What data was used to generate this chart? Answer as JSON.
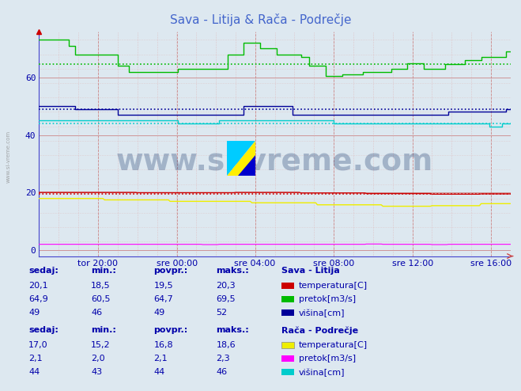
{
  "title": "Sava - Litija & Rača - Podrečje",
  "title_color": "#4466cc",
  "bg_color": "#dde8f0",
  "plot_bg_color": "#dde8f0",
  "x_ticks_labels": [
    "tor 20:00",
    "sre 00:00",
    "sre 04:00",
    "sre 08:00",
    "sre 12:00",
    "sre 16:00"
  ],
  "x_ticks_pos": [
    0.125,
    0.292,
    0.458,
    0.625,
    0.792,
    0.958
  ],
  "ylim": [
    -2,
    76
  ],
  "yticks": [
    0,
    20,
    40,
    60
  ],
  "n_points": 289,
  "sava_litija": {
    "temp_povpr": 19.5,
    "pretok_povpr": 64.7,
    "visina_povpr": 49
  },
  "raca_podrecje": {
    "visina_povpr": 44
  },
  "colors": {
    "sava_temp": "#cc0000",
    "sava_pretok": "#00bb00",
    "sava_visina": "#000099",
    "raca_temp": "#eeee00",
    "raca_pretok": "#ff00ff",
    "raca_visina": "#00cccc",
    "grid_v_major": "#cc8888",
    "grid_v_minor": "#ddaaaa",
    "grid_h_major": "#cc8888",
    "grid_h_minor": "#ddbbbb"
  },
  "watermark": "www.si-vreme.com",
  "watermark_color": "#1a3a6e",
  "watermark_alpha": 0.3,
  "table_color": "#0000aa",
  "label_color": "#0000aa",
  "axis_color": "#4444cc"
}
